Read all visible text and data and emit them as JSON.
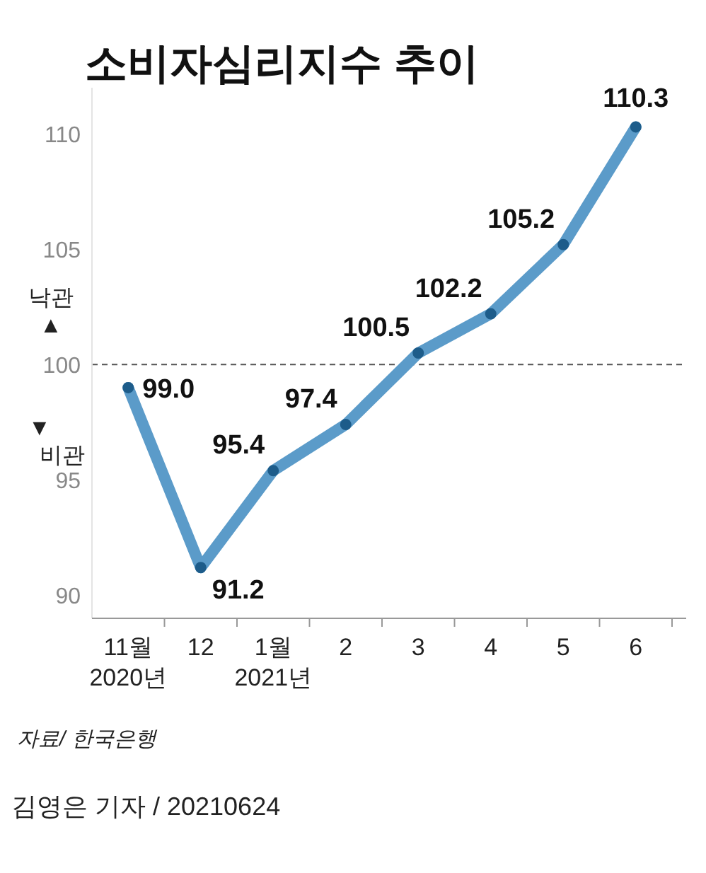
{
  "chart_data": {
    "type": "line",
    "title": "소비자심리지수 추이",
    "categories": [
      "11월\n2020년",
      "12",
      "1월\n2021년",
      "2",
      "3",
      "4",
      "5",
      "6"
    ],
    "series": [
      {
        "color": "#5b9bc9",
        "values": [
          99.0,
          91.2,
          95.4,
          97.4,
          100.5,
          102.2,
          105.2,
          110.3
        ],
        "value_labels": [
          "99.0",
          "91.2",
          "95.4",
          "97.4",
          "100.5",
          "102.2",
          "105.2",
          "110.3"
        ]
      }
    ],
    "marker": "circle",
    "line_style": "solid",
    "grid": false,
    "ylim": [
      89,
      112
    ],
    "yticks": [
      90,
      95,
      100,
      105,
      110
    ],
    "ref_lines": [
      {
        "axis": "y",
        "value": 100,
        "line_style": "dashed",
        "color": "#555555"
      }
    ],
    "annotations": [
      "낙관 ▲",
      "▼ 비관",
      "자료/ 한국은행",
      "김영은 기자 / 20210624"
    ]
  }
}
